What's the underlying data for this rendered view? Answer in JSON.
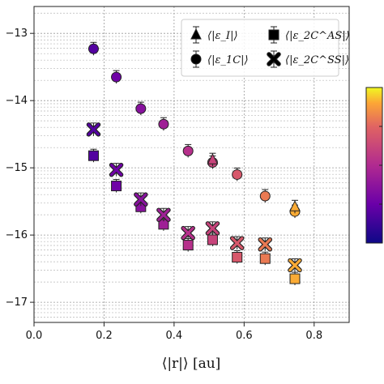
{
  "chart_data": {
    "type": "scatter",
    "xlabel": "⟨|r|⟩ [au]",
    "ylabel": "",
    "xlim": [
      0.0,
      0.9
    ],
    "ylim": [
      -17.3,
      -12.6
    ],
    "x_ticks": [
      {
        "value": 0.0,
        "label": "0.0"
      },
      {
        "value": 0.2,
        "label": "0.2"
      },
      {
        "value": 0.4,
        "label": "0.4"
      },
      {
        "value": 0.6,
        "label": "0.6"
      },
      {
        "value": 0.8,
        "label": "0.8"
      }
    ],
    "y_ticks": [
      {
        "value": -13,
        "label": "−13"
      },
      {
        "value": -14,
        "label": "−14"
      },
      {
        "value": -15,
        "label": "−15"
      },
      {
        "value": -16,
        "label": "−16"
      },
      {
        "value": -17,
        "label": "−17"
      }
    ],
    "y_scale": "log (minor gridlines)",
    "grid": true,
    "legend_position": "top-right",
    "colormap": "plasma",
    "colorbar": true,
    "series": [
      {
        "name": "⟨|ε_I|⟩",
        "marker": "triangle",
        "points": [
          {
            "x": 0.51,
            "y": -14.88
          },
          {
            "x": 0.745,
            "y": -15.58
          }
        ]
      },
      {
        "name": "⟨|ε_1C|⟩",
        "marker": "circle",
        "points": [
          {
            "x": 0.17,
            "y": -13.23
          },
          {
            "x": 0.235,
            "y": -13.65
          },
          {
            "x": 0.305,
            "y": -14.12
          },
          {
            "x": 0.37,
            "y": -14.35
          },
          {
            "x": 0.44,
            "y": -14.75
          },
          {
            "x": 0.51,
            "y": -14.92
          },
          {
            "x": 0.58,
            "y": -15.1
          },
          {
            "x": 0.66,
            "y": -15.42
          },
          {
            "x": 0.745,
            "y": -15.65
          }
        ]
      },
      {
        "name": "⟨|ε_2C^AS|⟩",
        "marker": "square",
        "points": [
          {
            "x": 0.17,
            "y": -14.82
          },
          {
            "x": 0.235,
            "y": -15.27
          },
          {
            "x": 0.305,
            "y": -15.58
          },
          {
            "x": 0.37,
            "y": -15.84
          },
          {
            "x": 0.44,
            "y": -16.15
          },
          {
            "x": 0.51,
            "y": -16.07
          },
          {
            "x": 0.58,
            "y": -16.33
          },
          {
            "x": 0.66,
            "y": -16.35
          },
          {
            "x": 0.745,
            "y": -16.65
          }
        ]
      },
      {
        "name": "⟨|ε_2C^SS|⟩",
        "marker": "x",
        "points": [
          {
            "x": 0.17,
            "y": -14.43
          },
          {
            "x": 0.235,
            "y": -15.03
          },
          {
            "x": 0.305,
            "y": -15.47
          },
          {
            "x": 0.37,
            "y": -15.7
          },
          {
            "x": 0.44,
            "y": -15.97
          },
          {
            "x": 0.51,
            "y": -15.9
          },
          {
            "x": 0.58,
            "y": -16.12
          },
          {
            "x": 0.66,
            "y": -16.14
          },
          {
            "x": 0.745,
            "y": -16.45
          }
        ]
      }
    ]
  }
}
